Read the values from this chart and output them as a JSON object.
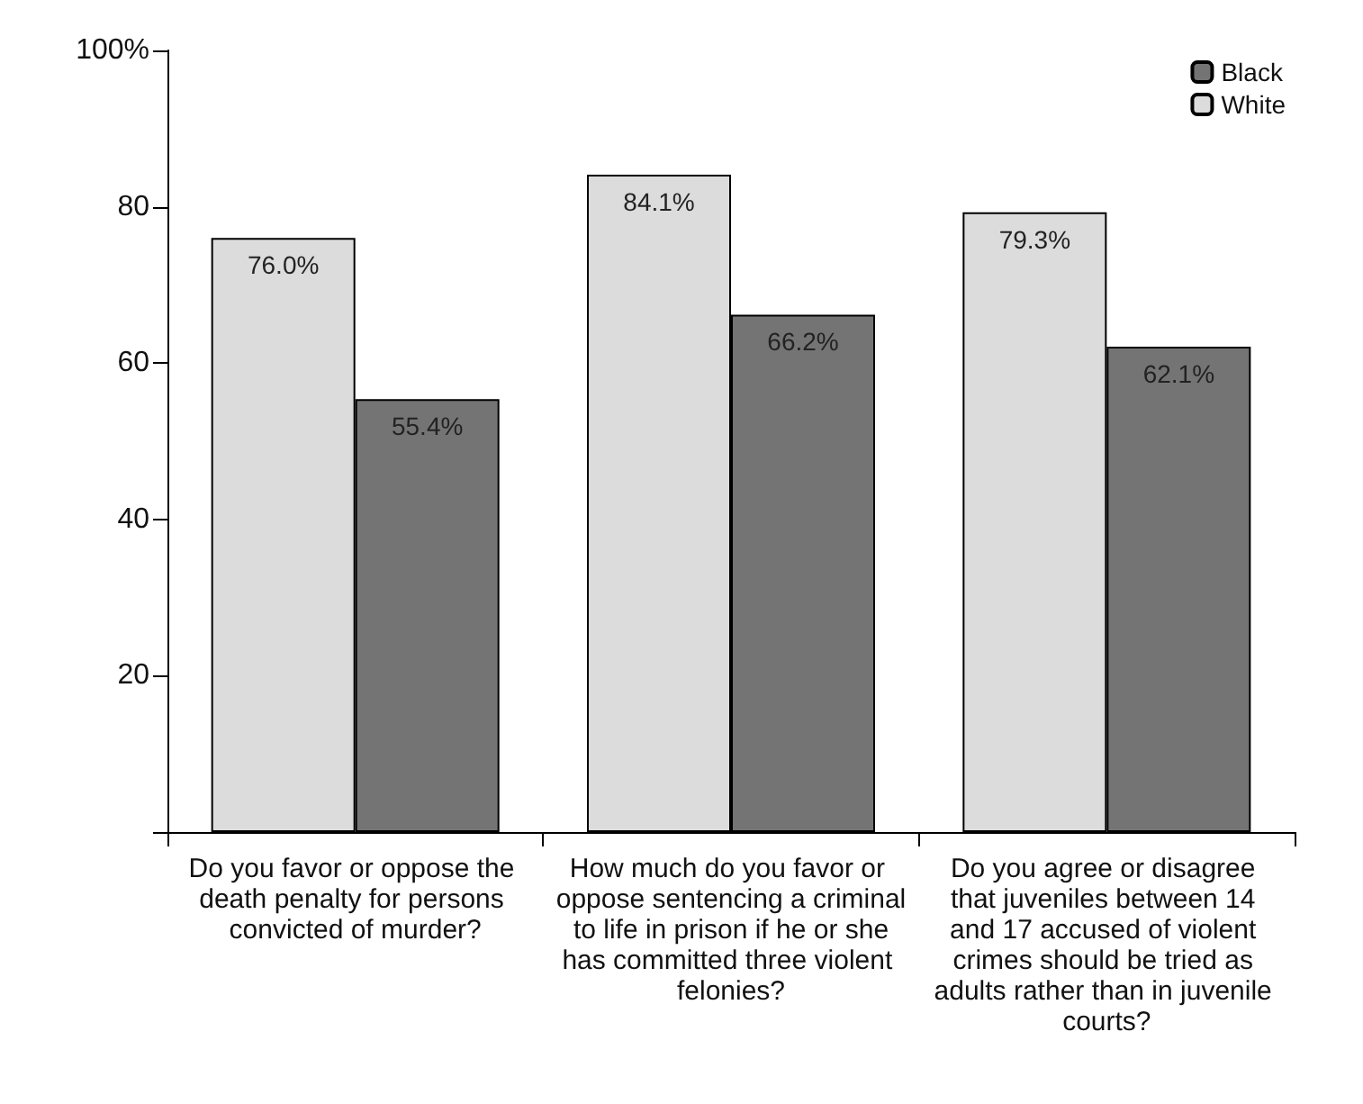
{
  "chart_data": {
    "type": "bar",
    "categories": [
      "Do you favor or oppose the death penalty for persons convicted of murder?",
      "How much do you favor or oppose sentencing a criminal to life in prison if he or she has committed three violent felonies?",
      "Do you agree or disagree that juveniles between 14 and 17 accused of violent crimes should be tried as adults rather than in juvenile courts?"
    ],
    "series": [
      {
        "name": "White",
        "color": "#dcdcdc",
        "values": [
          76.0,
          84.1,
          79.3
        ],
        "value_labels": [
          "76.0%",
          "84.1%",
          "79.3%"
        ]
      },
      {
        "name": "Black",
        "color": "#747474",
        "values": [
          55.4,
          66.2,
          62.1
        ],
        "value_labels": [
          "55.4%",
          "66.2%",
          "62.1%"
        ]
      }
    ],
    "ylim": [
      0,
      100
    ],
    "yticks": [
      {
        "value": 0,
        "label": null
      },
      20,
      40,
      60,
      80,
      {
        "value": 100,
        "label": "100%"
      }
    ],
    "grid": false,
    "legend": "top right"
  }
}
